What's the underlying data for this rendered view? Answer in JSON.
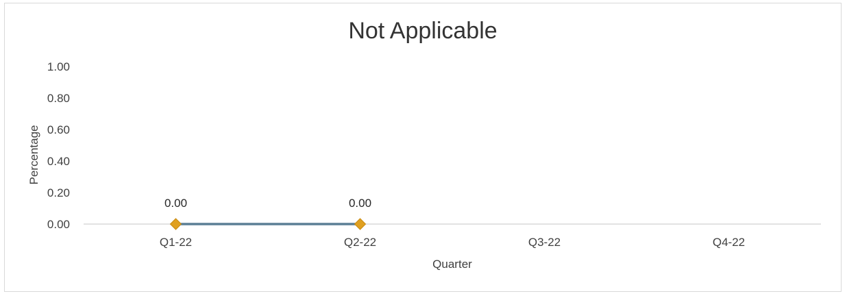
{
  "chart_data": {
    "type": "line",
    "title": "Not Applicable",
    "xlabel": "Quarter",
    "ylabel": "Percentage",
    "categories": [
      "Q1-22",
      "Q2-22",
      "Q3-22",
      "Q4-22"
    ],
    "y_ticks": [
      "0.00",
      "0.20",
      "0.40",
      "0.60",
      "0.80",
      "1.00"
    ],
    "ylim": [
      0,
      1
    ],
    "grid": false,
    "legend": "none",
    "series": [
      {
        "values": [
          0,
          0,
          null,
          null
        ],
        "data_labels": [
          "0.00",
          "0.00",
          "",
          ""
        ],
        "line_color": "#5b7f95",
        "marker_color": "#e0a020",
        "marker": "diamond"
      }
    ]
  }
}
